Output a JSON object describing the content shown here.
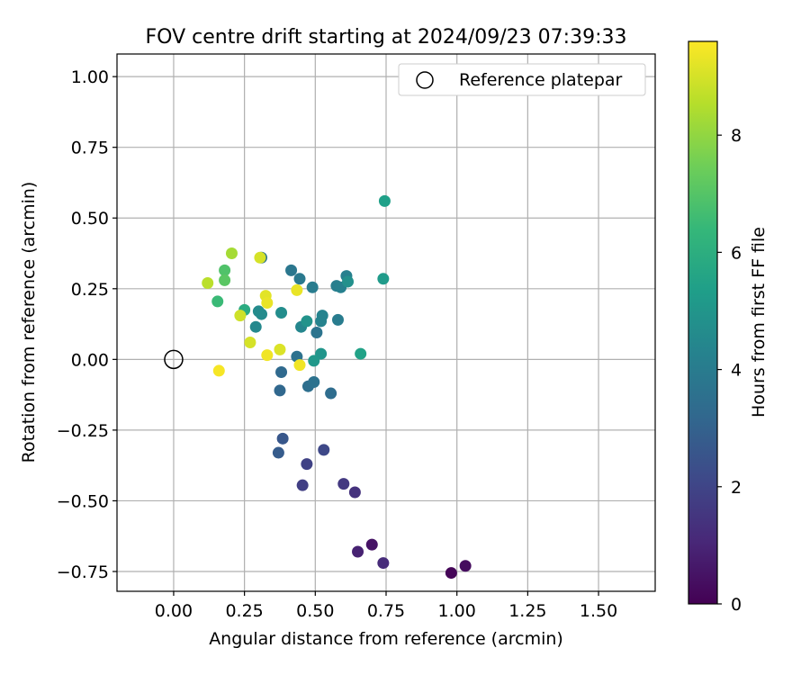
{
  "chart_data": {
    "type": "scatter",
    "title": "FOV centre drift starting at 2024/09/23 07:39:33",
    "xlabel": "Angular distance from reference (arcmin)",
    "ylabel": "Rotation from reference (arcmin)",
    "xlim": [
      -0.2,
      1.7
    ],
    "ylim": [
      -0.82,
      1.08
    ],
    "xticks": [
      "0.00",
      "0.25",
      "0.50",
      "0.75",
      "1.00",
      "1.25",
      "1.50"
    ],
    "yticks": [
      "−0.75",
      "−0.50",
      "−0.25",
      "0.00",
      "0.25",
      "0.50",
      "0.75",
      "1.00"
    ],
    "grid": true,
    "legend": {
      "placement": "top-right",
      "entries": [
        "Reference platepar"
      ]
    },
    "reference_point": {
      "x": 0.0,
      "y": 0.0,
      "marker": "open-circle"
    },
    "colorbar": {
      "label": "Hours from first FF file",
      "colormap": "viridis",
      "range": [
        0,
        9.6
      ],
      "ticks": [
        "0",
        "2",
        "4",
        "6",
        "8"
      ]
    },
    "colormap_stops": [
      "#440154",
      "#482878",
      "#3e4989",
      "#31688e",
      "#26828e",
      "#1f9e89",
      "#35b779",
      "#6ece58",
      "#b5de2b",
      "#fde725"
    ],
    "points": [
      {
        "x": 0.98,
        "y": -0.755,
        "c": 0.1
      },
      {
        "x": 1.03,
        "y": -0.73,
        "c": 0.3
      },
      {
        "x": 0.7,
        "y": -0.655,
        "c": 0.5
      },
      {
        "x": 0.65,
        "y": -0.68,
        "c": 0.9
      },
      {
        "x": 0.74,
        "y": -0.72,
        "c": 1.2
      },
      {
        "x": 0.64,
        "y": -0.47,
        "c": 1.4
      },
      {
        "x": 0.6,
        "y": -0.44,
        "c": 1.6
      },
      {
        "x": 0.455,
        "y": -0.445,
        "c": 1.8
      },
      {
        "x": 0.47,
        "y": -0.37,
        "c": 1.9
      },
      {
        "x": 0.53,
        "y": -0.32,
        "c": 2.1
      },
      {
        "x": 0.385,
        "y": -0.28,
        "c": 2.6
      },
      {
        "x": 0.37,
        "y": -0.33,
        "c": 2.8
      },
      {
        "x": 0.375,
        "y": -0.11,
        "c": 3.2
      },
      {
        "x": 0.38,
        "y": -0.045,
        "c": 3.3
      },
      {
        "x": 0.555,
        "y": -0.12,
        "c": 3.4
      },
      {
        "x": 0.475,
        "y": -0.095,
        "c": 3.5
      },
      {
        "x": 0.495,
        "y": -0.08,
        "c": 3.6
      },
      {
        "x": 0.435,
        "y": 0.01,
        "c": 3.6
      },
      {
        "x": 0.505,
        "y": 0.095,
        "c": 3.7
      },
      {
        "x": 0.31,
        "y": 0.36,
        "c": 3.7
      },
      {
        "x": 0.415,
        "y": 0.315,
        "c": 3.8
      },
      {
        "x": 0.445,
        "y": 0.285,
        "c": 3.9
      },
      {
        "x": 0.49,
        "y": 0.255,
        "c": 4.0
      },
      {
        "x": 0.58,
        "y": 0.14,
        "c": 4.0
      },
      {
        "x": 0.575,
        "y": 0.26,
        "c": 4.1
      },
      {
        "x": 0.59,
        "y": 0.255,
        "c": 4.2
      },
      {
        "x": 0.61,
        "y": 0.295,
        "c": 4.2
      },
      {
        "x": 0.52,
        "y": 0.135,
        "c": 4.3
      },
      {
        "x": 0.525,
        "y": 0.155,
        "c": 4.3
      },
      {
        "x": 0.45,
        "y": 0.115,
        "c": 4.4
      },
      {
        "x": 0.29,
        "y": 0.115,
        "c": 4.5
      },
      {
        "x": 0.3,
        "y": 0.17,
        "c": 4.6
      },
      {
        "x": 0.31,
        "y": 0.16,
        "c": 4.6
      },
      {
        "x": 0.38,
        "y": 0.165,
        "c": 4.7
      },
      {
        "x": 0.615,
        "y": 0.275,
        "c": 4.8
      },
      {
        "x": 0.47,
        "y": 0.135,
        "c": 4.9
      },
      {
        "x": 0.52,
        "y": 0.02,
        "c": 5.0
      },
      {
        "x": 0.495,
        "y": -0.005,
        "c": 5.1
      },
      {
        "x": 0.74,
        "y": 0.285,
        "c": 5.2
      },
      {
        "x": 0.745,
        "y": 0.56,
        "c": 5.4
      },
      {
        "x": 0.66,
        "y": 0.02,
        "c": 5.5
      },
      {
        "x": 0.25,
        "y": 0.175,
        "c": 5.9
      },
      {
        "x": 0.155,
        "y": 0.205,
        "c": 6.5
      },
      {
        "x": 0.18,
        "y": 0.315,
        "c": 6.9
      },
      {
        "x": 0.18,
        "y": 0.28,
        "c": 7.1
      },
      {
        "x": 0.205,
        "y": 0.375,
        "c": 8.3
      },
      {
        "x": 0.12,
        "y": 0.27,
        "c": 8.6
      },
      {
        "x": 0.235,
        "y": 0.155,
        "c": 8.9
      },
      {
        "x": 0.305,
        "y": 0.36,
        "c": 9.0
      },
      {
        "x": 0.27,
        "y": 0.06,
        "c": 9.0
      },
      {
        "x": 0.375,
        "y": 0.035,
        "c": 9.1
      },
      {
        "x": 0.325,
        "y": 0.225,
        "c": 9.2
      },
      {
        "x": 0.33,
        "y": 0.2,
        "c": 9.3
      },
      {
        "x": 0.435,
        "y": 0.245,
        "c": 9.3
      },
      {
        "x": 0.33,
        "y": 0.015,
        "c": 9.4
      },
      {
        "x": 0.445,
        "y": -0.02,
        "c": 9.4
      },
      {
        "x": 0.16,
        "y": -0.04,
        "c": 9.5
      }
    ]
  }
}
